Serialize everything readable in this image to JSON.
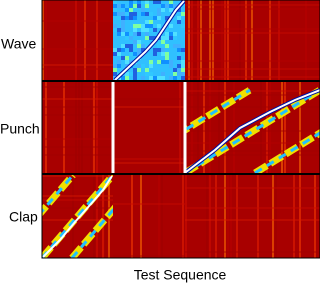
{
  "labels": {
    "rows": [
      "Wave",
      "Punch",
      "Clap"
    ],
    "x_axis": "Test Sequence"
  }
}
